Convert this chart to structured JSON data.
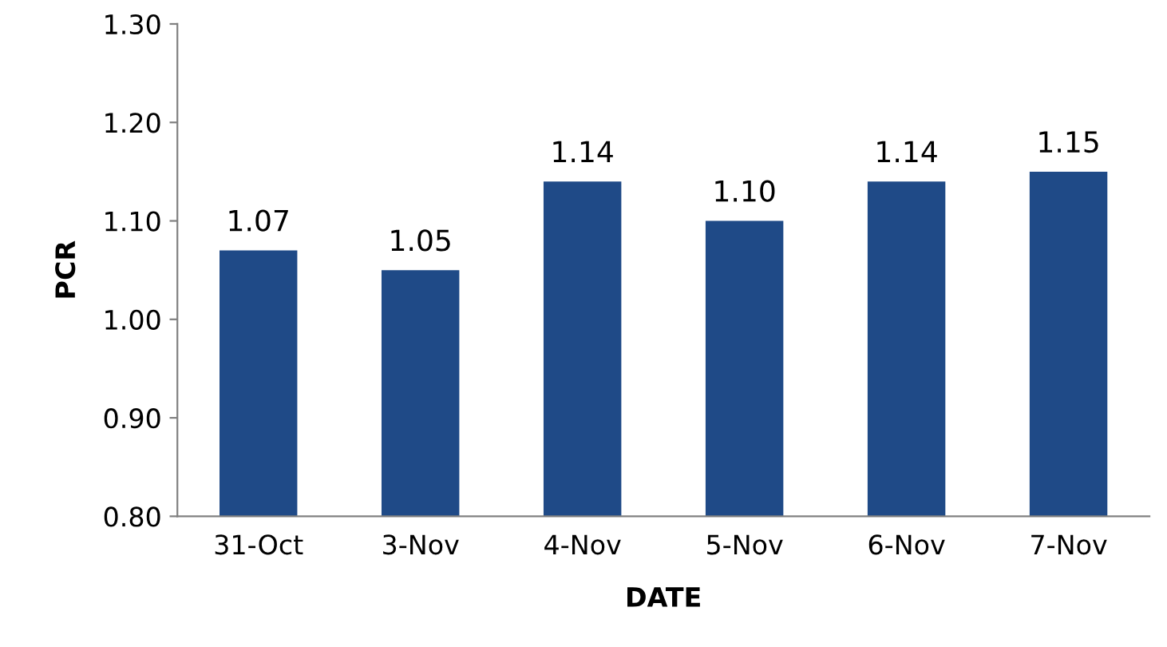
{
  "chart_data": {
    "type": "bar",
    "xlabel": "DATE",
    "ylabel": "PCR",
    "categories": [
      "31-Oct",
      "3-Nov",
      "4-Nov",
      "5-Nov",
      "6-Nov",
      "7-Nov"
    ],
    "values": [
      1.07,
      1.05,
      1.14,
      1.1,
      1.14,
      1.15
    ],
    "value_labels": [
      "1.07",
      "1.05",
      "1.14",
      "1.10",
      "1.14",
      "1.15"
    ],
    "color": "#1f4a87",
    "ylim": [
      0.8,
      1.3
    ],
    "yticks": [
      {
        "value": 0.8,
        "label": "0.80"
      },
      {
        "value": 0.9,
        "label": "0.90"
      },
      {
        "value": 1.0,
        "label": "1.00"
      },
      {
        "value": 1.1,
        "label": "1.10"
      },
      {
        "value": 1.2,
        "label": "1.20"
      },
      {
        "value": 1.3,
        "label": "1.30"
      }
    ],
    "grid": false,
    "legend": false
  }
}
